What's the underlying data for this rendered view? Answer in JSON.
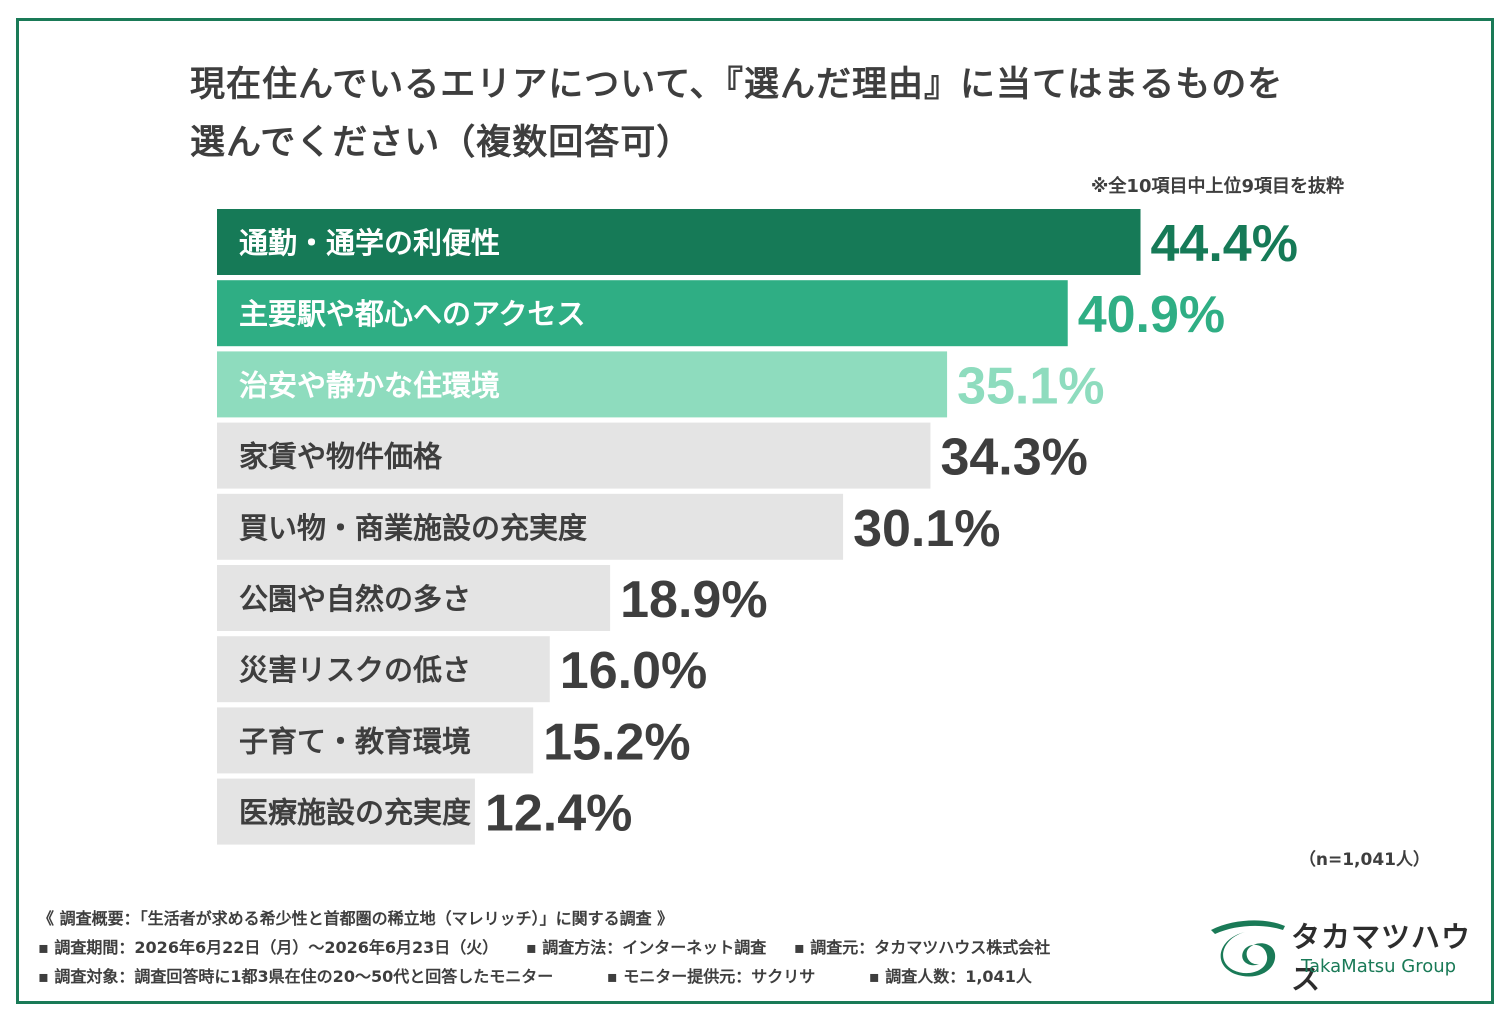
{
  "chart_data": {
    "type": "bar",
    "orientation": "horizontal",
    "title_line1": "現在住んでいるエリアについて、『選んだ理由』に当てはまるものを",
    "title_line2": "選んでください（複数回答可）",
    "note": "※全10項目中上位9項目を抜粋",
    "sample_note": "（n=1,041人）",
    "unit": "%",
    "categories": [
      "通勤・通学の利便性",
      "主要駅や都心へのアクセス",
      "治安や静かな住環境",
      "家賃や物件価格",
      "買い物・商業施設の充実度",
      "公園や自然の多さ",
      "災害リスクの低さ",
      "子育て・教育環境",
      "医療施設の充実度"
    ],
    "values": [
      44.4,
      40.9,
      35.1,
      34.3,
      30.1,
      18.9,
      16.0,
      15.2,
      12.4
    ],
    "value_labels": [
      "44.4%",
      "40.9%",
      "35.1%",
      "34.3%",
      "30.1%",
      "18.9%",
      "16.0%",
      "15.2%",
      "12.4%"
    ],
    "bar_colors": [
      "#167a57",
      "#2fae84",
      "#8edcbe",
      "#e4e4e4",
      "#e4e4e4",
      "#e4e4e4",
      "#e4e4e4",
      "#e4e4e4",
      "#e4e4e4"
    ],
    "label_colors": [
      "#ffffff",
      "#ffffff",
      "#ffffff",
      "#3e3e3e",
      "#3e3e3e",
      "#3e3e3e",
      "#3e3e3e",
      "#3e3e3e",
      "#3e3e3e"
    ],
    "value_colors": [
      "#167a57",
      "#2fae84",
      "#8edcbe",
      "#3e3e3e",
      "#3e3e3e",
      "#3e3e3e",
      "#3e3e3e",
      "#3e3e3e",
      "#3e3e3e"
    ]
  },
  "footer": {
    "row1": "《 調査概要：「生活者が求める希少性と首都圏の稀立地（マレリッチ）」に関する調査 》",
    "period": "▪ 調査期間：2026年6月22日（月）～2026年6月23日（火）",
    "method": "▪ 調査方法：インターネット調査",
    "org": "▪ 調査元：タカマツハウス株式会社",
    "target": "▪ 調査対象：調査回答時に1都3県在住の20～50代と回答したモニター",
    "provider": "▪ モニター提供元：サクリサ",
    "count": "▪ 調査人数：1,041人"
  },
  "logo": {
    "name_jp": "タカマツハウス",
    "name_en": "TakaMatsu Group"
  },
  "colors": {
    "frame": "#1a7a57",
    "accent_dark": "#167a57",
    "accent_mid": "#2fae84",
    "accent_light": "#8edcbe"
  }
}
